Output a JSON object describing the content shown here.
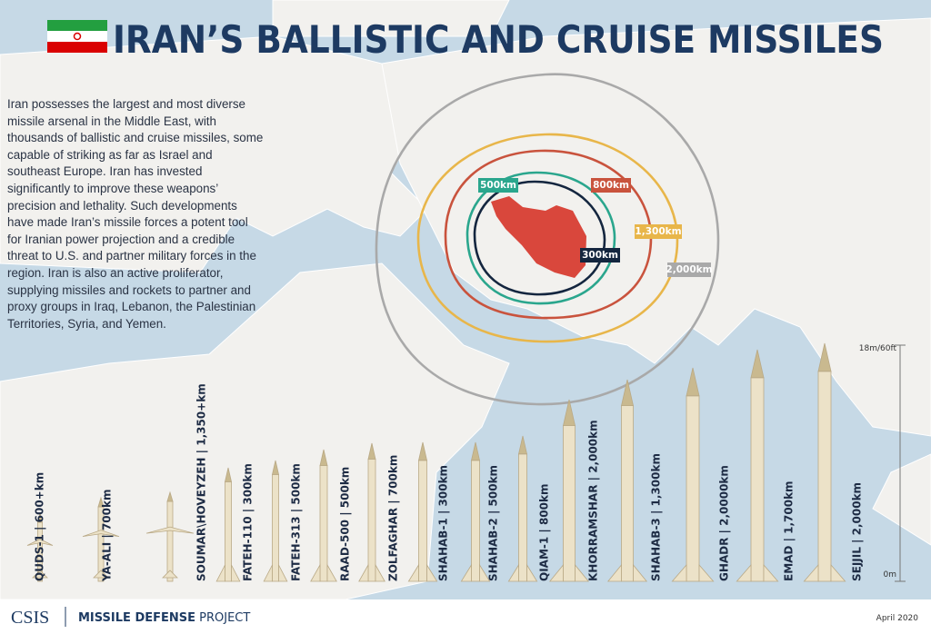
{
  "title": "IRAN’S BALLISTIC AND CRUISE MISSILES",
  "description": "Iran possesses the largest and most diverse missile arsenal in the Middle East, with thousands of ballistic and cruise missiles, some capable of striking as far as Israel and southeast Europe. Iran has invested significantly to improve these weapons’ precision and lethality. Such developments have made Iran’s missile forces a potent tool for Iranian power projection and a credible threat to U.S. and partner military forces in the region. Iran is also an active proliferator, supplying missiles and rockets to partner and  proxy groups in Iraq, Lebanon, the Palestinian Territories,  Syria, and Yemen.",
  "ranges": [
    {
      "label": "2,000km"
    },
    {
      "label": "1,300km"
    },
    {
      "label": "800km"
    },
    {
      "label": "500km"
    },
    {
      "label": "300km"
    }
  ],
  "missiles": [
    {
      "label": "QUDS-1 | 600+km"
    },
    {
      "label": "YA-ALI | 700km"
    },
    {
      "label": "SOUMAR\\HOVEYZEH | 1,350+km"
    },
    {
      "label": "FATEH-110 | 300km"
    },
    {
      "label": "FATEH-313 | 500km"
    },
    {
      "label": "RAAD-500 | 500km"
    },
    {
      "label": "ZOLFAGHAR | 700km"
    },
    {
      "label": "SHAHAB-1 | 300km"
    },
    {
      "label": "SHAHAB-2 | 500km"
    },
    {
      "label": "QIAM-1 | 800km"
    },
    {
      "label": "KHORRAMSHAR | 2,000km"
    },
    {
      "label": "SHAHAB-3 | 1,300km"
    },
    {
      "label": "GHADR | 2,0000km"
    },
    {
      "label": "EMAD | 1,700km"
    },
    {
      "label": "SEJJIL | 2,000km"
    }
  ],
  "scale": {
    "top": "18m/60ft",
    "bottom": "0m"
  },
  "footer": {
    "org": "CSIS",
    "project_bold": "MISSILE DEFENSE",
    "project_rest": "PROJECT",
    "date": "April 2020"
  }
}
